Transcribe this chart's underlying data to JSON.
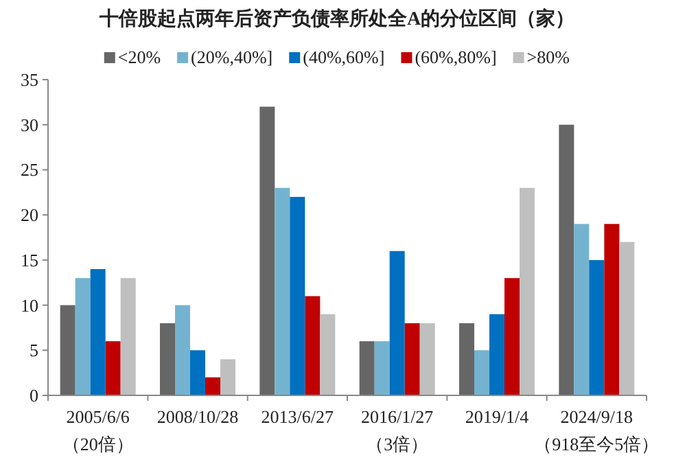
{
  "chart_data": {
    "type": "bar",
    "title": "十倍股起点两年后资产负债率所处全A的分位区间（家）",
    "categories": [
      "2005/6/6\n（20倍）",
      "2008/10/28",
      "2013/6/27",
      "2016/1/27\n（3倍）",
      "2019/1/4",
      "2024/9/18\n（918至今5倍）"
    ],
    "series": [
      {
        "name": "<20%",
        "color": "#666666",
        "values": [
          10,
          8,
          32,
          6,
          8,
          30
        ]
      },
      {
        "name": "(20%,40%]",
        "color": "#74b3d0",
        "values": [
          13,
          10,
          23,
          6,
          5,
          19
        ]
      },
      {
        "name": "(40%,60%]",
        "color": "#0070c0",
        "values": [
          14,
          5,
          22,
          16,
          9,
          15
        ]
      },
      {
        "name": "(60%,80%]",
        "color": "#c00000",
        "values": [
          6,
          2,
          11,
          8,
          13,
          19
        ]
      },
      {
        "name": ">80%",
        "color": "#bfbfbf",
        "values": [
          13,
          4,
          9,
          8,
          23,
          17
        ]
      }
    ],
    "ylim": [
      0,
      35
    ],
    "yticks": [
      0,
      5,
      10,
      15,
      20,
      25,
      30,
      35
    ],
    "grid": false,
    "legend": "top"
  }
}
